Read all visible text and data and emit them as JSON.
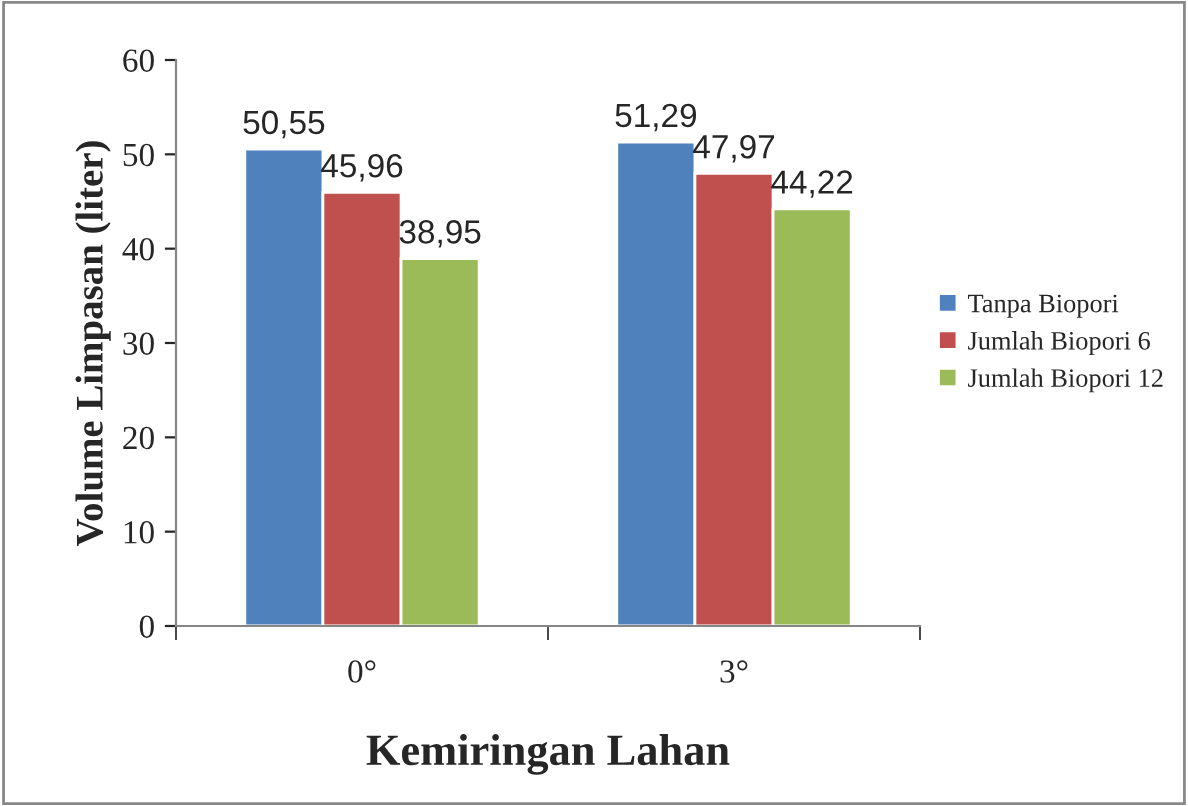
{
  "chart_data": {
    "type": "bar",
    "xlabel": "Kemiringan Lahan",
    "ylabel": "Volume Limpasan (liter)",
    "categories": [
      "0°",
      "3°"
    ],
    "series": [
      {
        "name": "Tanpa Biopori",
        "color": "#4f81bd",
        "values": [
          50.55,
          51.29
        ],
        "value_labels": [
          "50,55",
          "51,29"
        ]
      },
      {
        "name": "Jumlah Biopori 6",
        "color": "#c0504d",
        "values": [
          45.96,
          47.97
        ],
        "value_labels": [
          "45,96",
          "47,97"
        ]
      },
      {
        "name": "Jumlah Biopori 12",
        "color": "#9bbb59",
        "values": [
          38.95,
          44.22
        ],
        "value_labels": [
          "38,95",
          "44,22"
        ]
      }
    ],
    "ylim": [
      0,
      60
    ],
    "yticks": [
      0,
      10,
      20,
      30,
      40,
      50,
      60
    ],
    "grid": false,
    "legend": "right"
  }
}
